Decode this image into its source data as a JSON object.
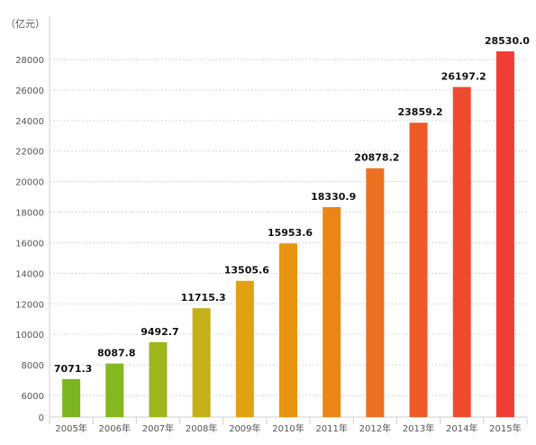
{
  "chart_data": {
    "type": "bar",
    "unit_label": "（亿元）",
    "categories": [
      "2005年",
      "2006年",
      "2007年",
      "2008年",
      "2009年",
      "2010年",
      "2011年",
      "2012年",
      "2013年",
      "2014年",
      "2015年"
    ],
    "values": [
      7071.3,
      8087.8,
      9492.7,
      11715.3,
      13505.6,
      15953.6,
      18330.9,
      20878.2,
      23859.2,
      26197.2,
      28530.0
    ],
    "value_labels": [
      "7071.3",
      "8087.8",
      "9492.7",
      "11715.3",
      "13505.6",
      "15953.6",
      "18330.9",
      "20878.2",
      "23859.2",
      "26197.2",
      "28530.0"
    ],
    "y_ticks": [
      0,
      6000,
      8000,
      10000,
      12000,
      14000,
      16000,
      18000,
      20000,
      22000,
      24000,
      26000,
      28000
    ],
    "axis_break": {
      "from": 0,
      "to": 5000
    },
    "ylim": [
      5000,
      30000
    ],
    "grid": true,
    "bar_colors": [
      "#7cb521",
      "#84b81c",
      "#a0b51c",
      "#c4b01a",
      "#e1a112",
      "#e79411",
      "#ea8516",
      "#ec7020",
      "#ee5a27",
      "#f04a2f",
      "#f23d35"
    ]
  }
}
